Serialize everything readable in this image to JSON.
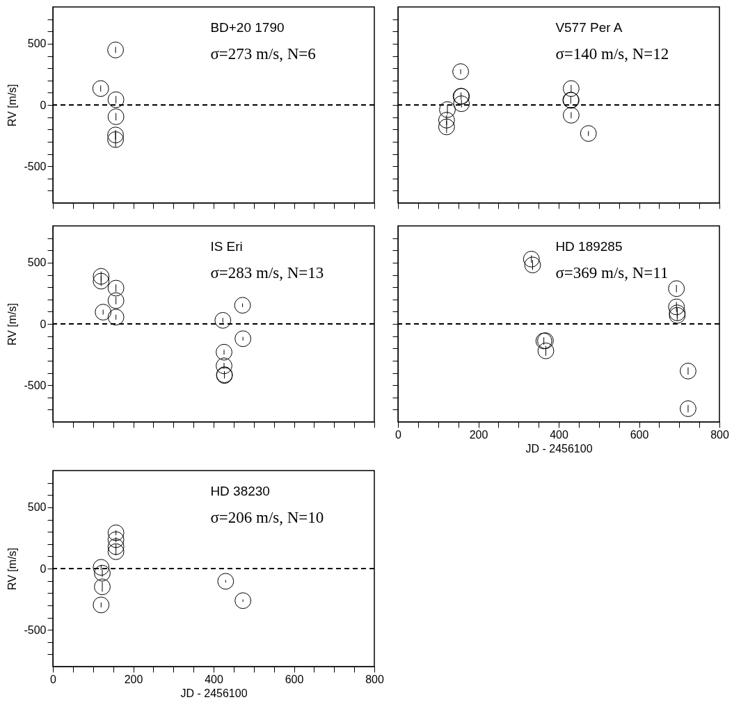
{
  "chart_data": [
    {
      "type": "scatter",
      "marker": "circle",
      "color": "#000000",
      "ylabel": "RV [m/s]",
      "tick_labels": "y",
      "annotations": [
        "BD+20 1790",
        "σ=273 m/s, N=6"
      ],
      "x": [
        156,
        119,
        157,
        157,
        156,
        156
      ],
      "values": [
        449,
        134,
        43,
        -96,
        -245,
        -283
      ],
      "errors": [
        25,
        25,
        30,
        30,
        40,
        60
      ],
      "xlim": [
        0,
        800
      ],
      "ylim": [
        -800,
        800
      ],
      "xticks": [
        0,
        {
          "value": 50,
          "label": null
        },
        {
          "value": 100,
          "label": null
        },
        {
          "value": 150,
          "label": null
        },
        200,
        {
          "value": 250,
          "label": null
        },
        {
          "value": 300,
          "label": null
        },
        {
          "value": 350,
          "label": null
        },
        400,
        {
          "value": 450,
          "label": null
        },
        {
          "value": 500,
          "label": null
        },
        {
          "value": 550,
          "label": null
        },
        600,
        {
          "value": 650,
          "label": null
        },
        {
          "value": 700,
          "label": null
        },
        {
          "value": 750,
          "label": null
        },
        800
      ],
      "yticks": [
        {
          "value": -700,
          "label": null
        },
        {
          "value": -600,
          "label": null
        },
        -500,
        {
          "value": -400,
          "label": null
        },
        {
          "value": -300,
          "label": null
        },
        {
          "value": -200,
          "label": null
        },
        {
          "value": -100,
          "label": null
        },
        0,
        {
          "value": 100,
          "label": null
        },
        {
          "value": 200,
          "label": null
        },
        {
          "value": 300,
          "label": null
        },
        {
          "value": 400,
          "label": null
        },
        500,
        {
          "value": 600,
          "label": null
        },
        {
          "value": 700,
          "label": null
        }
      ],
      "ref_lines": [
        {
          "axis": "y",
          "value": 0,
          "line_style": "dashed"
        }
      ]
    },
    {
      "type": "scatter",
      "marker": "circle",
      "color": "#000000",
      "tick_labels": false,
      "annotations": [
        "V577 Per A",
        "σ=140 m/s, N=12"
      ],
      "x": [
        156,
        157,
        158,
        158,
        123,
        121,
        121,
        431,
        430,
        431,
        431,
        474
      ],
      "values": [
        272,
        72,
        70,
        10,
        -38,
        -124,
        -179,
        134,
        40,
        38,
        -84,
        -233
      ],
      "errors": [
        20,
        30,
        null,
        30,
        40,
        40,
        50,
        30,
        30,
        null,
        25,
        20
      ],
      "xlim": [
        0,
        800
      ],
      "ylim": [
        -800,
        800
      ],
      "xticks": [
        0,
        {
          "value": 50,
          "label": null
        },
        {
          "value": 100,
          "label": null
        },
        {
          "value": 150,
          "label": null
        },
        200,
        {
          "value": 250,
          "label": null
        },
        {
          "value": 300,
          "label": null
        },
        {
          "value": 350,
          "label": null
        },
        400,
        {
          "value": 450,
          "label": null
        },
        {
          "value": 500,
          "label": null
        },
        {
          "value": 550,
          "label": null
        },
        600,
        {
          "value": 650,
          "label": null
        },
        {
          "value": 700,
          "label": null
        },
        {
          "value": 750,
          "label": null
        },
        800
      ],
      "yticks": [
        {
          "value": -700,
          "label": null
        },
        {
          "value": -600,
          "label": null
        },
        -500,
        {
          "value": -400,
          "label": null
        },
        {
          "value": -300,
          "label": null
        },
        {
          "value": -200,
          "label": null
        },
        {
          "value": -100,
          "label": null
        },
        0,
        {
          "value": 100,
          "label": null
        },
        {
          "value": 200,
          "label": null
        },
        {
          "value": 300,
          "label": null
        },
        {
          "value": 400,
          "label": null
        },
        500,
        {
          "value": 600,
          "label": null
        },
        {
          "value": 700,
          "label": null
        }
      ],
      "ref_lines": [
        {
          "axis": "y",
          "value": 0,
          "line_style": "dashed"
        }
      ]
    },
    {
      "type": "scatter",
      "marker": "circle",
      "color": "#000000",
      "ylabel": "RV [m/s]",
      "tick_labels": "y",
      "annotations": [
        "IS Eri",
        "σ=283 m/s, N=13"
      ],
      "x": [
        120,
        120,
        157,
        157,
        125,
        157,
        423,
        472,
        473,
        426,
        426,
        427,
        427
      ],
      "values": [
        388,
        349,
        292,
        190,
        96,
        55,
        29,
        152,
        -121,
        -231,
        -342,
        -415,
        -421
      ],
      "errors": [
        40,
        40,
        30,
        30,
        20,
        20,
        20,
        15,
        15,
        20,
        25,
        30,
        null
      ],
      "xlim": [
        0,
        800
      ],
      "ylim": [
        -800,
        800
      ],
      "xticks": [
        0,
        {
          "value": 50,
          "label": null
        },
        {
          "value": 100,
          "label": null
        },
        {
          "value": 150,
          "label": null
        },
        200,
        {
          "value": 250,
          "label": null
        },
        {
          "value": 300,
          "label": null
        },
        {
          "value": 350,
          "label": null
        },
        400,
        {
          "value": 450,
          "label": null
        },
        {
          "value": 500,
          "label": null
        },
        {
          "value": 550,
          "label": null
        },
        600,
        {
          "value": 650,
          "label": null
        },
        {
          "value": 700,
          "label": null
        },
        {
          "value": 750,
          "label": null
        },
        800
      ],
      "yticks": [
        {
          "value": -700,
          "label": null
        },
        {
          "value": -600,
          "label": null
        },
        -500,
        {
          "value": -400,
          "label": null
        },
        {
          "value": -300,
          "label": null
        },
        {
          "value": -200,
          "label": null
        },
        {
          "value": -100,
          "label": null
        },
        0,
        {
          "value": 100,
          "label": null
        },
        {
          "value": 200,
          "label": null
        },
        {
          "value": 300,
          "label": null
        },
        {
          "value": 400,
          "label": null
        },
        500,
        {
          "value": 600,
          "label": null
        },
        {
          "value": 700,
          "label": null
        }
      ],
      "ref_lines": [
        {
          "axis": "y",
          "value": 0,
          "line_style": "dashed"
        }
      ]
    },
    {
      "type": "scatter",
      "marker": "circle",
      "color": "#000000",
      "xlabel": "JD - 2456100",
      "tick_labels": "x",
      "annotations": [
        "HD 189285",
        "σ=369 m/s, N=11"
      ],
      "x": [
        332,
        335,
        693,
        693,
        695,
        695,
        363,
        367,
        368,
        722,
        722
      ],
      "values": [
        529,
        481,
        288,
        139,
        90,
        70,
        -139,
        -137,
        -220,
        -385,
        -692
      ],
      "errors": [
        30,
        40,
        30,
        40,
        40,
        40,
        30,
        null,
        40,
        30,
        30
      ],
      "xlim": [
        0,
        800
      ],
      "ylim": [
        -800,
        800
      ],
      "xticks": [
        0,
        {
          "value": 50,
          "label": null
        },
        {
          "value": 100,
          "label": null
        },
        {
          "value": 150,
          "label": null
        },
        200,
        {
          "value": 250,
          "label": null
        },
        {
          "value": 300,
          "label": null
        },
        {
          "value": 350,
          "label": null
        },
        400,
        {
          "value": 450,
          "label": null
        },
        {
          "value": 500,
          "label": null
        },
        {
          "value": 550,
          "label": null
        },
        600,
        {
          "value": 650,
          "label": null
        },
        {
          "value": 700,
          "label": null
        },
        {
          "value": 750,
          "label": null
        },
        800
      ],
      "yticks": [
        {
          "value": -700,
          "label": null
        },
        {
          "value": -600,
          "label": null
        },
        -500,
        {
          "value": -400,
          "label": null
        },
        {
          "value": -300,
          "label": null
        },
        {
          "value": -200,
          "label": null
        },
        {
          "value": -100,
          "label": null
        },
        0,
        {
          "value": 100,
          "label": null
        },
        {
          "value": 200,
          "label": null
        },
        {
          "value": 300,
          "label": null
        },
        {
          "value": 400,
          "label": null
        },
        500,
        {
          "value": 600,
          "label": null
        },
        {
          "value": 700,
          "label": null
        }
      ],
      "ref_lines": [
        {
          "axis": "y",
          "value": 0,
          "line_style": "dashed"
        }
      ]
    },
    {
      "type": "scatter",
      "marker": "circle",
      "color": "#000000",
      "xlabel": "JD - 2456100",
      "ylabel": "RV [m/s]",
      "annotations": [
        "HD 38230",
        "σ=206 m/s, N=10"
      ],
      "x": [
        157,
        157,
        157,
        157,
        120,
        123,
        123,
        120,
        430,
        473
      ],
      "values": [
        292,
        236,
        179,
        138,
        10,
        -38,
        -149,
        -297,
        -104,
        -262
      ],
      "errors": [
        20,
        20,
        20,
        30,
        20,
        30,
        40,
        20,
        10,
        10
      ],
      "xlim": [
        0,
        800
      ],
      "ylim": [
        -800,
        800
      ],
      "xticks": [
        0,
        {
          "value": 50,
          "label": null
        },
        {
          "value": 100,
          "label": null
        },
        {
          "value": 150,
          "label": null
        },
        200,
        {
          "value": 250,
          "label": null
        },
        {
          "value": 300,
          "label": null
        },
        {
          "value": 350,
          "label": null
        },
        400,
        {
          "value": 450,
          "label": null
        },
        {
          "value": 500,
          "label": null
        },
        {
          "value": 550,
          "label": null
        },
        600,
        {
          "value": 650,
          "label": null
        },
        {
          "value": 700,
          "label": null
        },
        {
          "value": 750,
          "label": null
        },
        800
      ],
      "yticks": [
        {
          "value": -700,
          "label": null
        },
        {
          "value": -600,
          "label": null
        },
        -500,
        {
          "value": -400,
          "label": null
        },
        {
          "value": -300,
          "label": null
        },
        {
          "value": -200,
          "label": null
        },
        {
          "value": -100,
          "label": null
        },
        0,
        {
          "value": 100,
          "label": null
        },
        {
          "value": 200,
          "label": null
        },
        {
          "value": 300,
          "label": null
        },
        {
          "value": 400,
          "label": null
        },
        500,
        {
          "value": 600,
          "label": null
        },
        {
          "value": 700,
          "label": null
        }
      ],
      "ref_lines": [
        {
          "axis": "y",
          "value": 0,
          "line_style": "dashed"
        }
      ]
    }
  ]
}
